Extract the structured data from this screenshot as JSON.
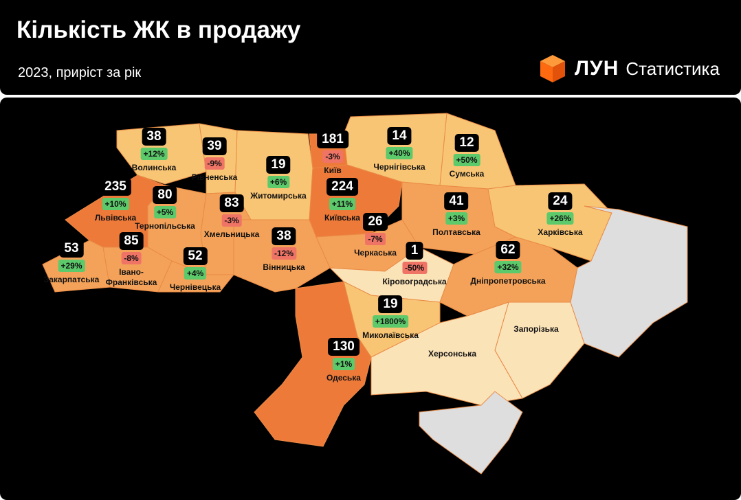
{
  "header": {
    "title": "Кількість ЖК в продажу",
    "subtitle": "2023, приріст за рік",
    "logo_word": "ЛУН",
    "logo_product": "Статистика"
  },
  "colors": {
    "level_high": "#ee7a3a",
    "level_mid": "#f4a259",
    "level_low": "#f8c575",
    "level_min": "#fbe3b8",
    "occupied": "#dedede",
    "positive": "#5cc96b",
    "negative": "#ef7466"
  },
  "regions": [
    {
      "name": "Волинська",
      "count": "38",
      "change": "+12%",
      "trend": "up"
    },
    {
      "name": "Рівненська",
      "count": "39",
      "change": "-9%",
      "trend": "down"
    },
    {
      "name": "Житомирська",
      "count": "19",
      "change": "+6%",
      "trend": "up"
    },
    {
      "name": "Львівська",
      "count": "235",
      "change": "+10%",
      "trend": "up"
    },
    {
      "name": "Тернопільська",
      "count": "80",
      "change": "+5%",
      "trend": "up"
    },
    {
      "name": "Хмельницька",
      "count": "83",
      "change": "-3%",
      "trend": "down"
    },
    {
      "name": "Закарпатська",
      "count": "53",
      "change": "+29%",
      "trend": "up"
    },
    {
      "name": "Івано-\nФранківська",
      "count": "85",
      "change": "-8%",
      "trend": "down"
    },
    {
      "name": "Чернівецька",
      "count": "52",
      "change": "+4%",
      "trend": "up"
    },
    {
      "name": "Вінницька",
      "count": "38",
      "change": "-12%",
      "trend": "down"
    },
    {
      "name": "Київ",
      "count": "181",
      "change": "-3%",
      "trend": "down"
    },
    {
      "name": "Київська",
      "count": "224",
      "change": "+11%",
      "trend": "up"
    },
    {
      "name": "Чернігівська",
      "count": "14",
      "change": "+40%",
      "trend": "up"
    },
    {
      "name": "Сумська",
      "count": "12",
      "change": "+50%",
      "trend": "up"
    },
    {
      "name": "Черкаська",
      "count": "26",
      "change": "-7%",
      "trend": "down"
    },
    {
      "name": "Полтавська",
      "count": "41",
      "change": "+3%",
      "trend": "up"
    },
    {
      "name": "Харківська",
      "count": "24",
      "change": "+26%",
      "trend": "up"
    },
    {
      "name": "Кіровоградська",
      "count": "1",
      "change": "-50%",
      "trend": "down"
    },
    {
      "name": "Дніпропетровська",
      "count": "62",
      "change": "+32%",
      "trend": "up"
    },
    {
      "name": "Миколаївська",
      "count": "19",
      "change": "+1800%",
      "trend": "up"
    },
    {
      "name": "Одеська",
      "count": "130",
      "change": "+1%",
      "trend": "up"
    },
    {
      "name": "Запорізька"
    },
    {
      "name": "Херсонська"
    }
  ]
}
